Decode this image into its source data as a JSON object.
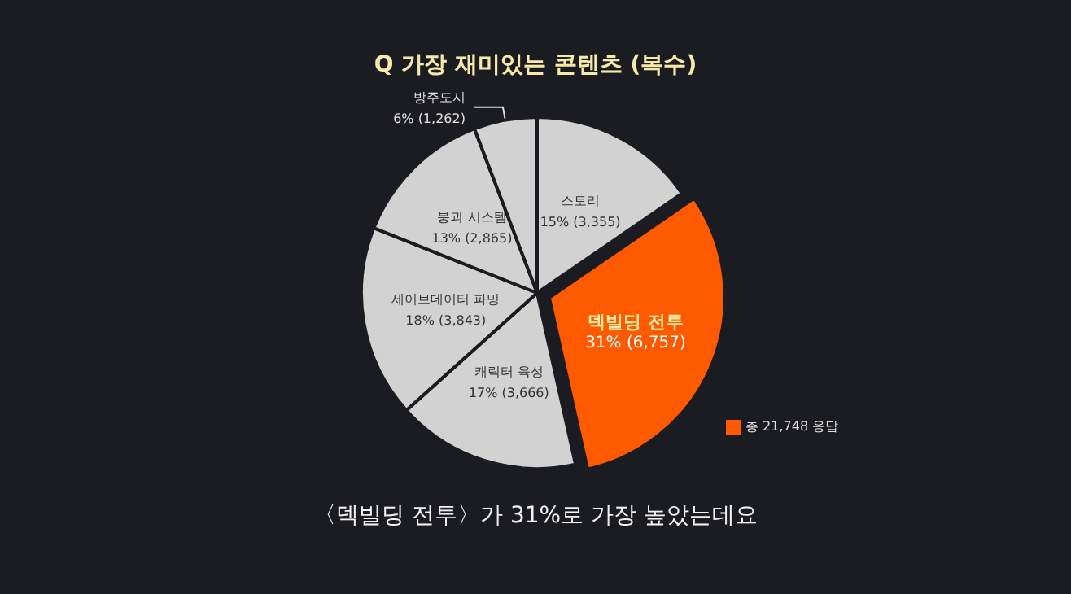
{
  "chart_data": {
    "type": "pie",
    "title": "Q 가장 재미있는 콘텐츠 (복수)",
    "categories": [
      "스토리",
      "덱빌딩 전투",
      "캐릭터 육성",
      "세이브데이터 파밍",
      "붕괴 시스템",
      "방주도시"
    ],
    "values": [
      3355,
      6757,
      3666,
      3843,
      2865,
      1262
    ],
    "value_labels": [
      "15% (3,355)",
      "31% (6,757)",
      "17% (3,666)",
      "18% (3,843)",
      "13% (2,865)",
      "6% (1,262)"
    ],
    "colors": [
      "#d2d2d2",
      "#ff5a00",
      "#d2d2d2",
      "#d2d2d2",
      "#d2d2d2",
      "#d2d2d2"
    ],
    "annotations": [
      "총 21,748 응답",
      "〈덱빌딩 전투〉가 31%로 가장 높았는데요"
    ],
    "legend": false
  }
}
